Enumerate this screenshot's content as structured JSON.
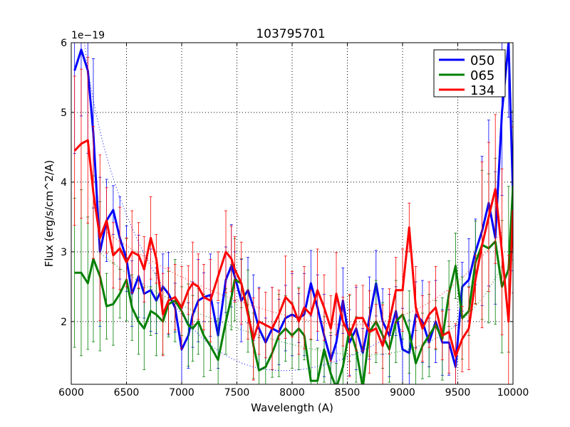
{
  "chart_data": {
    "type": "line",
    "title": "103795701",
    "xlabel": "Wavelength (A)",
    "ylabel": "Flux (erg/s/cm^2/A)",
    "offset_text": "1e−19",
    "xlim": [
      6000,
      10000
    ],
    "ylim": [
      1.1,
      6.0
    ],
    "xticks": [
      6000,
      6500,
      7000,
      7500,
      8000,
      8500,
      9000,
      9500,
      10000
    ],
    "yticks": [
      2,
      3,
      4,
      5,
      6
    ],
    "grid": true,
    "legend_position": "top-right",
    "series": [
      {
        "name": "050",
        "color": "#0000ff",
        "x": [
          6030,
          6090,
          6150,
          6200,
          6260,
          6320,
          6380,
          6440,
          6500,
          6550,
          6610,
          6660,
          6720,
          6770,
          6830,
          6880,
          6940,
          7000,
          7060,
          7100,
          7150,
          7200,
          7260,
          7330,
          7400,
          7450,
          7480,
          7540,
          7600,
          7650,
          7700,
          7760,
          7820,
          7880,
          7940,
          8000,
          8060,
          8110,
          8170,
          8230,
          8290,
          8350,
          8400,
          8460,
          8520,
          8580,
          8640,
          8700,
          8760,
          8820,
          8880,
          8940,
          9000,
          9060,
          9120,
          9180,
          9240,
          9300,
          9360,
          9420,
          9480,
          9540,
          9600,
          9660,
          9720,
          9780,
          9840,
          9900,
          9960,
          10000
        ],
        "y": [
          5.6,
          5.9,
          5.6,
          4.7,
          3.0,
          3.45,
          3.6,
          3.2,
          2.9,
          2.4,
          2.65,
          2.4,
          2.45,
          2.3,
          2.5,
          2.4,
          2.2,
          1.6,
          1.8,
          2.1,
          2.3,
          2.35,
          2.38,
          1.8,
          2.6,
          2.8,
          2.65,
          2.3,
          2.45,
          2.2,
          1.9,
          1.7,
          1.9,
          1.85,
          2.05,
          2.1,
          2.05,
          2.1,
          2.55,
          2.2,
          1.8,
          1.45,
          1.7,
          2.3,
          1.7,
          1.9,
          1.55,
          2.05,
          2.55,
          2.0,
          1.8,
          2.15,
          1.6,
          1.55,
          2.1,
          2.0,
          1.7,
          2.0,
          1.7,
          1.7,
          1.35,
          2.5,
          2.6,
          3.0,
          3.3,
          3.7,
          3.2,
          5.0,
          6.0,
          3.8
        ]
      },
      {
        "name": "065",
        "color": "#008000",
        "x": [
          6030,
          6090,
          6150,
          6200,
          6260,
          6320,
          6380,
          6440,
          6500,
          6550,
          6610,
          6660,
          6720,
          6770,
          6830,
          6880,
          6940,
          7000,
          7060,
          7100,
          7150,
          7200,
          7260,
          7330,
          7400,
          7450,
          7480,
          7540,
          7600,
          7650,
          7700,
          7760,
          7820,
          7880,
          7940,
          8000,
          8060,
          8110,
          8170,
          8230,
          8290,
          8350,
          8400,
          8460,
          8520,
          8580,
          8640,
          8700,
          8760,
          8820,
          8880,
          8940,
          9000,
          9060,
          9120,
          9180,
          9240,
          9300,
          9360,
          9420,
          9480,
          9540,
          9600,
          9660,
          9720,
          9780,
          9840,
          9900,
          9960,
          10000
        ],
        "y": [
          2.7,
          2.7,
          2.55,
          2.9,
          2.65,
          2.22,
          2.25,
          2.4,
          2.6,
          2.2,
          2.0,
          1.9,
          2.15,
          2.1,
          2.0,
          2.25,
          2.3,
          2.15,
          1.95,
          1.9,
          2.0,
          1.8,
          1.65,
          1.45,
          2.0,
          2.35,
          2.6,
          2.55,
          2.15,
          1.65,
          1.3,
          1.35,
          1.55,
          1.8,
          1.9,
          1.8,
          1.9,
          1.8,
          1.15,
          1.15,
          1.6,
          1.25,
          1.05,
          1.35,
          1.9,
          1.6,
          1.05,
          1.85,
          2.0,
          1.8,
          1.6,
          2.0,
          2.1,
          1.85,
          1.4,
          1.65,
          1.8,
          1.95,
          1.75,
          2.4,
          2.8,
          2.05,
          2.15,
          2.85,
          3.1,
          3.05,
          3.15,
          2.5,
          2.75,
          3.95
        ]
      },
      {
        "name": "134",
        "color": "#ff0000",
        "x": [
          6030,
          6090,
          6150,
          6200,
          6260,
          6320,
          6380,
          6440,
          6500,
          6550,
          6610,
          6660,
          6720,
          6770,
          6830,
          6880,
          6940,
          7000,
          7060,
          7100,
          7150,
          7200,
          7260,
          7330,
          7400,
          7450,
          7480,
          7540,
          7600,
          7650,
          7700,
          7760,
          7820,
          7880,
          7940,
          8000,
          8060,
          8110,
          8170,
          8230,
          8290,
          8350,
          8400,
          8460,
          8520,
          8580,
          8640,
          8700,
          8760,
          8820,
          8880,
          8940,
          9000,
          9060,
          9120,
          9180,
          9240,
          9300,
          9360,
          9420,
          9480,
          9540,
          9600,
          9660,
          9720,
          9780,
          9840,
          9900,
          9960,
          10000
        ],
        "y": [
          4.45,
          4.55,
          4.6,
          3.85,
          3.2,
          3.45,
          2.95,
          3.05,
          2.85,
          3.0,
          2.95,
          2.75,
          3.2,
          2.9,
          2.1,
          2.3,
          2.35,
          2.2,
          2.45,
          2.55,
          2.5,
          2.35,
          2.3,
          2.65,
          3.0,
          2.9,
          2.75,
          2.55,
          2.1,
          1.75,
          2.0,
          1.95,
          1.9,
          2.1,
          2.35,
          2.25,
          2.0,
          2.2,
          2.1,
          2.45,
          2.2,
          1.9,
          2.4,
          2.0,
          1.8,
          2.05,
          2.05,
          1.85,
          1.9,
          1.65,
          2.0,
          2.45,
          2.45,
          3.35,
          2.2,
          1.9,
          2.1,
          2.2,
          1.8,
          1.85,
          1.5,
          1.75,
          1.9,
          2.6,
          3.1,
          3.5,
          3.9,
          3.0,
          2.0,
          3.6
        ]
      }
    ]
  }
}
